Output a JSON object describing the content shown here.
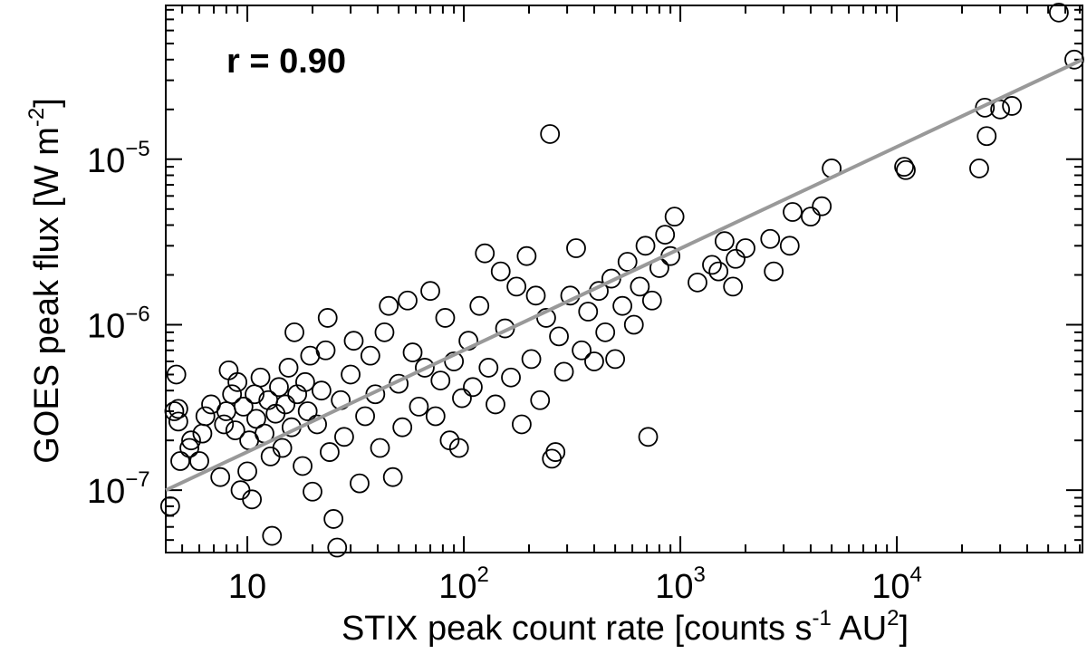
{
  "chart_data": {
    "type": "scatter",
    "title": "",
    "xlabel": "STIX peak count rate [counts  s",
    "xlabel_sup1": "-1",
    "xlabel_mid": " AU",
    "xlabel_sup2": "2",
    "xlabel_end": "]",
    "ylabel": "GOES peak flux [W m",
    "ylabel_sup": "-2",
    "ylabel_end": "]",
    "xscale": "log",
    "yscale": "log",
    "xlim": [
      4.2,
      72000
    ],
    "ylim": [
      4.2e-08,
      8.5e-05
    ],
    "grid": false,
    "x_ticks": [
      {
        "value": 10,
        "base": "10",
        "exp": ""
      },
      {
        "value": 100,
        "base": "10",
        "exp": "2"
      },
      {
        "value": 1000,
        "base": "10",
        "exp": "3"
      },
      {
        "value": 10000,
        "base": "10",
        "exp": "4"
      }
    ],
    "y_ticks": [
      {
        "value": 1e-07,
        "base": "10",
        "exp": "−7"
      },
      {
        "value": 1e-06,
        "base": "10",
        "exp": "−6"
      },
      {
        "value": 1e-05,
        "base": "10",
        "exp": "−5"
      }
    ],
    "annotation": "r = 0.90",
    "fit_line": {
      "x": [
        4.2,
        72000
      ],
      "y": [
        1e-07,
        4e-05
      ],
      "color": "#999999"
    },
    "marker_color": "#000000",
    "points": [
      [
        4.4,
        8e-08
      ],
      [
        4.6,
        3e-07
      ],
      [
        4.7,
        5e-07
      ],
      [
        4.8,
        2.6e-07
      ],
      [
        4.8,
        3.1e-07
      ],
      [
        4.9,
        1.5e-07
      ],
      [
        5.4,
        1.8e-07
      ],
      [
        5.5,
        2e-07
      ],
      [
        6,
        1.5e-07
      ],
      [
        6.2,
        2.2e-07
      ],
      [
        6.4,
        2.8e-07
      ],
      [
        6.8,
        3.3e-07
      ],
      [
        7.5,
        1.2e-07
      ],
      [
        7.8,
        2.5e-07
      ],
      [
        8,
        3e-07
      ],
      [
        8.2,
        5.3e-07
      ],
      [
        8.5,
        3.8e-07
      ],
      [
        8.8,
        2.3e-07
      ],
      [
        9,
        4.5e-07
      ],
      [
        9.3,
        1e-07
      ],
      [
        9.6,
        3.2e-07
      ],
      [
        10,
        1.3e-07
      ],
      [
        10.2,
        2e-07
      ],
      [
        10.5,
        8.8e-08
      ],
      [
        10.8,
        3.8e-07
      ],
      [
        11,
        2.7e-07
      ],
      [
        11.5,
        4.8e-07
      ],
      [
        12,
        2.2e-07
      ],
      [
        12.5,
        3.5e-07
      ],
      [
        12.8,
        1.6e-07
      ],
      [
        13,
        5.3e-08
      ],
      [
        13.5,
        2.9e-07
      ],
      [
        14,
        4.2e-07
      ],
      [
        14.5,
        1.8e-07
      ],
      [
        15,
        3.3e-07
      ],
      [
        15.5,
        5.5e-07
      ],
      [
        16,
        2.4e-07
      ],
      [
        16.5,
        9e-07
      ],
      [
        17,
        3.8e-07
      ],
      [
        18,
        1.4e-07
      ],
      [
        18.5,
        4.5e-07
      ],
      [
        19,
        3e-07
      ],
      [
        19.5,
        6.5e-07
      ],
      [
        20,
        9.8e-08
      ],
      [
        21,
        2.5e-07
      ],
      [
        22,
        4e-07
      ],
      [
        23,
        7e-07
      ],
      [
        23.5,
        1.1e-06
      ],
      [
        24,
        1.7e-07
      ],
      [
        25,
        6.7e-08
      ],
      [
        26,
        4.5e-08
      ],
      [
        27,
        3.5e-07
      ],
      [
        28,
        2.1e-07
      ],
      [
        30,
        5e-07
      ],
      [
        31,
        8e-07
      ],
      [
        33,
        1.1e-07
      ],
      [
        35,
        2.8e-07
      ],
      [
        37,
        6.5e-07
      ],
      [
        39,
        3.8e-07
      ],
      [
        41,
        1.8e-07
      ],
      [
        43,
        9e-07
      ],
      [
        45,
        1.3e-06
      ],
      [
        47,
        1.2e-07
      ],
      [
        50,
        4.4e-07
      ],
      [
        52,
        2.4e-07
      ],
      [
        55,
        1.4e-06
      ],
      [
        58,
        6.8e-07
      ],
      [
        62,
        3.2e-07
      ],
      [
        66,
        5.5e-07
      ],
      [
        70,
        1.6e-06
      ],
      [
        74,
        2.8e-07
      ],
      [
        78,
        4.6e-07
      ],
      [
        82,
        1.1e-06
      ],
      [
        86,
        2e-07
      ],
      [
        90,
        6e-07
      ],
      [
        95,
        1.8e-07
      ],
      [
        98,
        3.6e-07
      ],
      [
        105,
        8e-07
      ],
      [
        110,
        4.2e-07
      ],
      [
        118,
        1.3e-06
      ],
      [
        125,
        2.7e-06
      ],
      [
        130,
        5.5e-07
      ],
      [
        140,
        3.3e-07
      ],
      [
        148,
        2.1e-06
      ],
      [
        155,
        9.5e-07
      ],
      [
        165,
        4.8e-07
      ],
      [
        175,
        1.7e-06
      ],
      [
        185,
        2.5e-07
      ],
      [
        195,
        2.6e-06
      ],
      [
        205,
        6.2e-07
      ],
      [
        215,
        1.5e-06
      ],
      [
        225,
        3.5e-07
      ],
      [
        240,
        1.1e-06
      ],
      [
        250,
        1.42e-05
      ],
      [
        255,
        1.55e-07
      ],
      [
        265,
        1.7e-07
      ],
      [
        275,
        8.5e-07
      ],
      [
        290,
        5.2e-07
      ],
      [
        310,
        1.5e-06
      ],
      [
        330,
        2.9e-06
      ],
      [
        350,
        7e-07
      ],
      [
        375,
        1.2e-06
      ],
      [
        400,
        6e-07
      ],
      [
        420,
        1.6e-06
      ],
      [
        450,
        9e-07
      ],
      [
        480,
        1.9e-06
      ],
      [
        500,
        6.2e-07
      ],
      [
        540,
        1.3e-06
      ],
      [
        570,
        2.4e-06
      ],
      [
        610,
        1e-06
      ],
      [
        650,
        1.7e-06
      ],
      [
        690,
        3e-06
      ],
      [
        710,
        2.1e-07
      ],
      [
        740,
        1.4e-06
      ],
      [
        800,
        2.2e-06
      ],
      [
        850,
        3.5e-06
      ],
      [
        900,
        2.6e-06
      ],
      [
        940,
        4.5e-06
      ],
      [
        1200,
        1.8e-06
      ],
      [
        1400,
        2.3e-06
      ],
      [
        1500,
        2.1e-06
      ],
      [
        1600,
        3.2e-06
      ],
      [
        1750,
        1.7e-06
      ],
      [
        1800,
        2.5e-06
      ],
      [
        2000,
        2.9e-06
      ],
      [
        2600,
        3.3e-06
      ],
      [
        2700,
        2.1e-06
      ],
      [
        3200,
        3e-06
      ],
      [
        3300,
        4.8e-06
      ],
      [
        4000,
        4.5e-06
      ],
      [
        4500,
        5.2e-06
      ],
      [
        5000,
        8.8e-06
      ],
      [
        10800,
        9e-06
      ],
      [
        11000,
        8.6e-06
      ],
      [
        24000,
        8.8e-06
      ],
      [
        25500,
        2.05e-05
      ],
      [
        26000,
        1.38e-05
      ],
      [
        30000,
        2e-05
      ],
      [
        34000,
        2.1e-05
      ],
      [
        56000,
        7.7e-05
      ],
      [
        66000,
        4e-05
      ]
    ]
  }
}
